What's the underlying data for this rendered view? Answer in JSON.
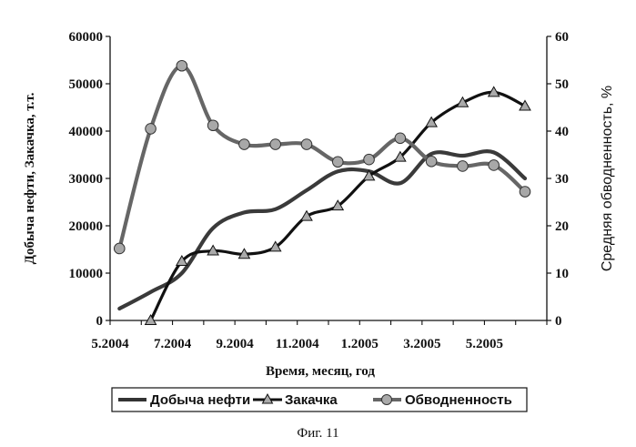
{
  "chart_data": {
    "type": "line",
    "xlabel": "Время, месяц, год",
    "ylabel_left": "Добыча нефти, Закачка, т.т.",
    "ylabel_right": "Средняя обводненность, %",
    "x_tick_labels": [
      "5.2004",
      "7.2004",
      "9.2004",
      "11.2004",
      "1.2005",
      "3.2005",
      "5.2005"
    ],
    "y_left": {
      "min": 0,
      "max": 60000,
      "ticks": [
        0,
        10000,
        20000,
        30000,
        40000,
        50000,
        60000
      ]
    },
    "y_right": {
      "min": 0,
      "max": 60,
      "ticks": [
        0,
        10,
        20,
        30,
        40,
        50,
        60
      ]
    },
    "legend": {
      "placement": "bottom"
    },
    "series": [
      {
        "name": "Добыча нефти",
        "axis": "left",
        "marker": "none",
        "x": [
          5.3,
          6.3,
          7.3,
          8.3,
          9.3,
          10.3,
          11.3,
          12.3,
          13.3,
          14.3,
          15.3,
          16.3,
          17.3,
          18.3
        ],
        "values": [
          2500,
          6000,
          10000,
          19500,
          22800,
          23500,
          27500,
          31500,
          31500,
          29000,
          35200,
          34800,
          35500,
          30000
        ]
      },
      {
        "name": "Закачка",
        "axis": "left",
        "marker": "triangle",
        "x": [
          6.3,
          7.3,
          8.3,
          9.3,
          10.3,
          11.3,
          12.3,
          13.3,
          14.3,
          15.3,
          16.3,
          17.3,
          18.3
        ],
        "values": [
          0,
          12500,
          14700,
          14000,
          15500,
          22000,
          24200,
          30500,
          34500,
          41800,
          46000,
          48200,
          45300
        ]
      },
      {
        "name": "Обводненность",
        "axis": "right",
        "marker": "circle",
        "x": [
          5.3,
          6.3,
          7.3,
          8.3,
          9.3,
          10.3,
          11.3,
          12.3,
          13.3,
          14.3,
          15.3,
          16.3,
          17.3,
          18.3
        ],
        "values": [
          15.2,
          40.5,
          53.8,
          41.2,
          37.2,
          37.2,
          37.2,
          33.5,
          34.0,
          38.5,
          33.6,
          32.6,
          32.8,
          27.2
        ]
      }
    ]
  },
  "caption": "Фиг. 11"
}
